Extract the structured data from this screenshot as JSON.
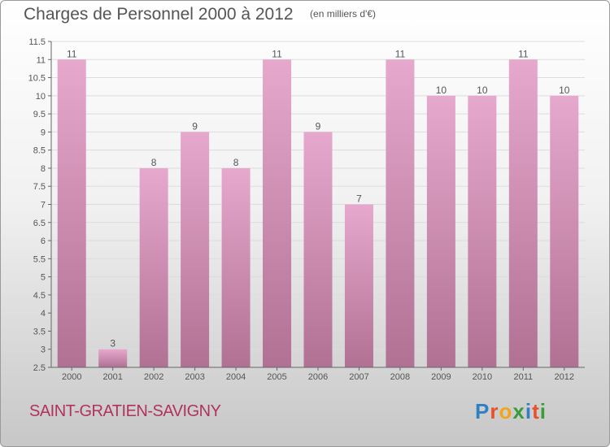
{
  "page": {
    "title": "Charges de Personnel 2000 à 2012",
    "subtitle": "(en milliers d'€)",
    "commune": "SAINT-GRATIEN-SAVIGNY",
    "logo": {
      "text": "Proxiti",
      "letter_colors": [
        "#2f7fc6",
        "#e8502a",
        "#f2a51c",
        "#3a9b3a",
        "#2f7fc6",
        "#e8502a",
        "#3a9b3a"
      ]
    }
  },
  "chart_data": {
    "type": "bar",
    "categories": [
      "2000",
      "2001",
      "2002",
      "2003",
      "2004",
      "2005",
      "2006",
      "2007",
      "2008",
      "2009",
      "2010",
      "2011",
      "2012"
    ],
    "values": [
      11,
      3,
      8,
      9,
      8,
      11,
      9,
      7,
      11,
      10,
      10,
      11,
      10
    ],
    "ylim": [
      2.5,
      11.5
    ],
    "yticks": [
      "2.5",
      "3",
      "3.5",
      "4",
      "4.5",
      "5",
      "5.5",
      "6",
      "6.5",
      "7",
      "7.5",
      "8",
      "8.5",
      "9",
      "9.5",
      "10",
      "10.5",
      "11",
      "11.5"
    ],
    "grid": true,
    "bar_color_top": "#e6a8cd",
    "bar_color_bottom": "#b07193"
  }
}
